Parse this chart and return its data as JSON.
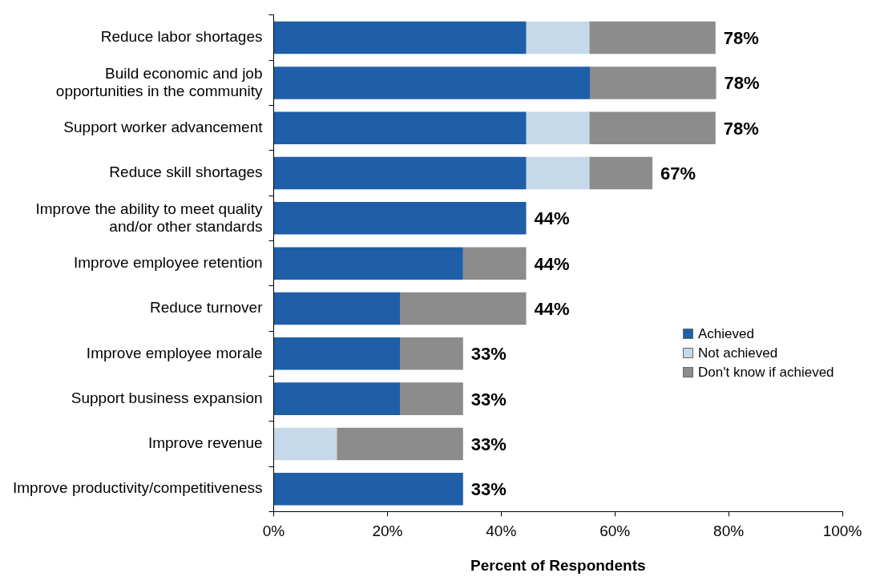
{
  "chart_data": {
    "type": "bar",
    "orientation": "horizontal",
    "stacked": true,
    "categories": [
      "Reduce labor shortages",
      "Build economic and job\nopportunities in the community",
      "Support worker advancement",
      "Reduce skill shortages",
      "Improve the ability to meet quality\nand/or other standards",
      "Improve employee retention",
      "Reduce turnover",
      "Improve employee morale",
      "Support business expansion",
      "Improve revenue",
      "Improve productivity/competitiveness"
    ],
    "series": [
      {
        "name": "Achieved",
        "color": "#1f5fa8",
        "values": [
          44.4,
          55.6,
          44.4,
          44.4,
          44.4,
          33.3,
          22.2,
          22.2,
          22.2,
          0,
          33.3
        ]
      },
      {
        "name": "Not achieved",
        "color": "#c5d9ea",
        "values": [
          11.1,
          0,
          11.1,
          11.1,
          0,
          0,
          0,
          0,
          0,
          11.1,
          0
        ]
      },
      {
        "name": "Don't know if achieved",
        "color": "#8c8c8c",
        "values": [
          22.2,
          22.2,
          22.2,
          11.1,
          0,
          11.1,
          22.2,
          11.1,
          11.1,
          22.2,
          0
        ]
      }
    ],
    "totals": [
      "78%",
      "78%",
      "78%",
      "67%",
      "44%",
      "44%",
      "44%",
      "33%",
      "33%",
      "33%",
      "33%"
    ],
    "xlabel": "Percent of Respondents",
    "xlim": [
      0,
      100
    ],
    "xticks": [
      {
        "value": 0,
        "label": "0%"
      },
      {
        "value": 20,
        "label": "20%"
      },
      {
        "value": 40,
        "label": "40%"
      },
      {
        "value": 60,
        "label": "60%"
      },
      {
        "value": 80,
        "label": "80%"
      },
      {
        "value": 100,
        "label": "100%"
      }
    ],
    "grid": false,
    "legend": "right"
  }
}
